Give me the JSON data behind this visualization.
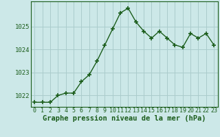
{
  "x": [
    0,
    1,
    2,
    3,
    4,
    5,
    6,
    7,
    8,
    9,
    10,
    11,
    12,
    13,
    14,
    15,
    16,
    17,
    18,
    19,
    20,
    21,
    22,
    23
  ],
  "y": [
    1021.7,
    1021.7,
    1021.7,
    1022.0,
    1022.1,
    1022.1,
    1022.6,
    1022.9,
    1023.5,
    1024.2,
    1024.9,
    1025.6,
    1025.8,
    1025.2,
    1024.8,
    1024.5,
    1024.8,
    1024.5,
    1024.2,
    1024.1,
    1024.7,
    1024.5,
    1024.7,
    1024.2
  ],
  "line_color": "#1a5c1a",
  "marker": "+",
  "marker_size": 4,
  "marker_lw": 1.2,
  "background_color": "#cce8e8",
  "grid_color": "#aacccc",
  "xlabel": "Graphe pression niveau de la mer (hPa)",
  "xlabel_fontsize": 7.5,
  "xlabel_color": "#1a5c1a",
  "xlabel_fontweight": "bold",
  "ylim": [
    1021.5,
    1026.1
  ],
  "yticks": [
    1022,
    1023,
    1024,
    1025
  ],
  "xtick_fontsize": 6,
  "ytick_fontsize": 6.5,
  "tick_color": "#1a5c1a",
  "spine_color": "#1a5c1a",
  "linewidth": 1.0
}
